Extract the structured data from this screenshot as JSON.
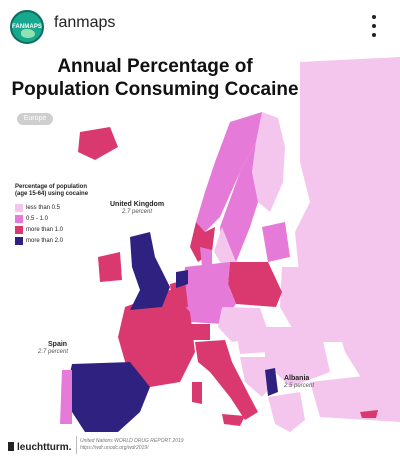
{
  "post": {
    "account_name": "fanmaps",
    "avatar_text": "FANMAPS",
    "menu_icon": "more-vertical-icon"
  },
  "map": {
    "title_line1": "Annual Percentage of",
    "title_line2": "Population Consuming Cocaine",
    "region": "Europe",
    "legend": {
      "title_line1": "Percentage of population",
      "title_line2": "(age 15-64) using cocaine",
      "items": [
        {
          "label": "less than 0.5",
          "color": "#f4c6ee"
        },
        {
          "label": "0.5 - 1.0",
          "color": "#e57ad8"
        },
        {
          "label": "more than 1.0",
          "color": "#d9396e"
        },
        {
          "label": "more than 2.0",
          "color": "#2e2180"
        }
      ]
    },
    "callouts": [
      {
        "name": "United Kingdom",
        "value": "2.7 percent"
      },
      {
        "name": "Spain",
        "value": "2.7 percent"
      },
      {
        "name": "Albania",
        "value": "2.5 percent"
      }
    ],
    "footer": {
      "brand": "leuchtturm.",
      "source_line1": "United Nations WORLD DRUG REPORT 2019",
      "source_line2": "https://wdr.unodc.org/wdr2019/"
    }
  }
}
